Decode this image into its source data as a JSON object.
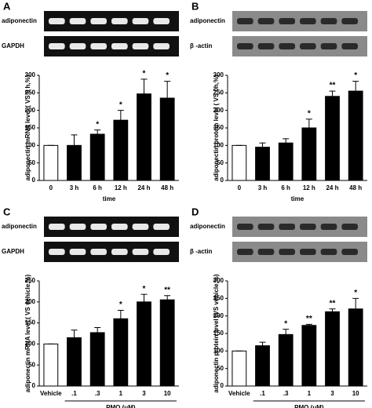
{
  "chart_data": [
    {
      "type": "bar",
      "panel": "A",
      "gel_labels": [
        "adiponectin",
        "GAPDH"
      ],
      "gel_style": "dark",
      "categories": [
        "0",
        "3 h",
        "6 h",
        "12 h",
        "24 h",
        "48 h"
      ],
      "values": [
        100,
        100,
        132,
        172,
        247,
        235
      ],
      "errors": [
        0,
        30,
        12,
        28,
        42,
        48
      ],
      "value_labels": [
        null,
        null,
        "*",
        "*",
        "*",
        "*"
      ],
      "colors": [
        "#ffffff",
        "#000000",
        "#000000",
        "#000000",
        "#000000",
        "#000000"
      ],
      "ylim": [
        0,
        300
      ],
      "yticks": [
        0,
        50,
        100,
        150,
        200,
        250,
        300
      ],
      "ylabel": "adiponectin mRNA level ( VS 0 h,%)",
      "xlabel": "time",
      "xlabel_underline": false
    },
    {
      "type": "bar",
      "panel": "B",
      "gel_labels": [
        "adiponectin",
        "β -actin"
      ],
      "gel_style": "light",
      "categories": [
        "0",
        "3 h",
        "6 h",
        "12 h",
        "24 h",
        "48 h"
      ],
      "values": [
        100,
        95,
        107,
        150,
        240,
        255
      ],
      "errors": [
        0,
        12,
        12,
        25,
        15,
        28
      ],
      "value_labels": [
        null,
        null,
        null,
        "*",
        "**",
        "*"
      ],
      "colors": [
        "#ffffff",
        "#000000",
        "#000000",
        "#000000",
        "#000000",
        "#000000"
      ],
      "ylim": [
        0,
        300
      ],
      "yticks": [
        0,
        50,
        100,
        150,
        200,
        250,
        300
      ],
      "ylabel": "adiponectin protein level ( VS 0h,%)",
      "xlabel": "time",
      "xlabel_underline": false
    },
    {
      "type": "bar",
      "panel": "C",
      "gel_labels": [
        "adiponectin",
        "GAPDH"
      ],
      "gel_style": "dark",
      "categories": [
        "Vehicle",
        ".1",
        ".3",
        "1",
        "3",
        "10"
      ],
      "values": [
        100,
        115,
        127,
        160,
        200,
        205
      ],
      "errors": [
        0,
        18,
        12,
        20,
        18,
        10
      ],
      "value_labels": [
        null,
        null,
        null,
        "*",
        "*",
        "**"
      ],
      "colors": [
        "#ffffff",
        "#000000",
        "#000000",
        "#000000",
        "#000000",
        "#000000"
      ],
      "ylim": [
        0,
        250
      ],
      "yticks": [
        0,
        50,
        100,
        150,
        200,
        250
      ],
      "ylabel": "adiponectin mRNA level ( VS vehicle,%)",
      "xlabel": "PMQ (μM)",
      "xlabel_underline": true
    },
    {
      "type": "bar",
      "panel": "D",
      "gel_labels": [
        "adiponectin",
        "β -actin"
      ],
      "gel_style": "light",
      "categories": [
        "Vehicle",
        ".1",
        ".3",
        "1",
        "3",
        "10"
      ],
      "values": [
        100,
        115,
        147,
        173,
        212,
        220
      ],
      "errors": [
        0,
        10,
        15,
        3,
        8,
        30
      ],
      "value_labels": [
        null,
        null,
        "*",
        "**",
        "**",
        "*"
      ],
      "colors": [
        "#ffffff",
        "#000000",
        "#000000",
        "#000000",
        "#000000",
        "#000000"
      ],
      "ylim": [
        0,
        300
      ],
      "yticks": [
        0,
        50,
        100,
        150,
        200,
        250,
        300
      ],
      "ylabel": "adiponectin protein level (VS vehicle,%)",
      "xlabel": "PMQ (μM)",
      "xlabel_underline": true
    }
  ]
}
